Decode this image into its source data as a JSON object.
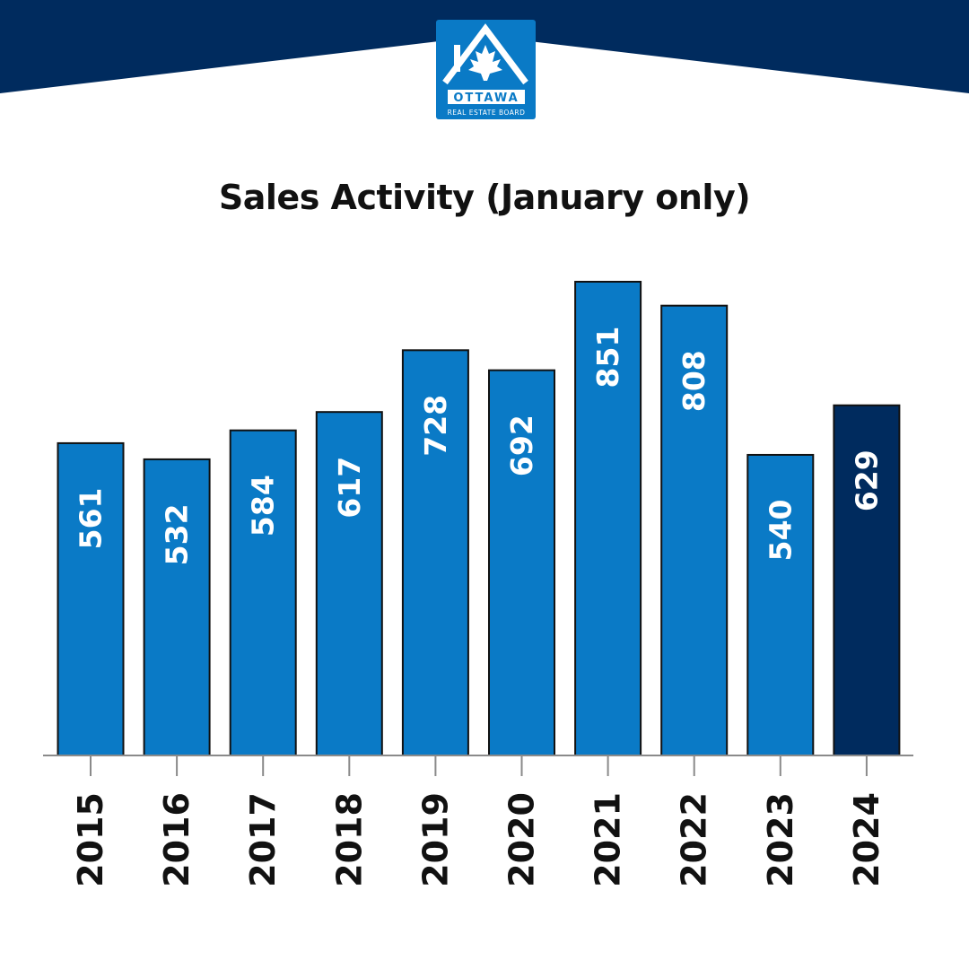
{
  "brand": {
    "logo_text_main": "OTTAWA",
    "logo_text_sub": "REAL ESTATE BOARD",
    "navy": "#002b5e",
    "blue": "#0a7ac6"
  },
  "chart_data": {
    "type": "bar",
    "title": "Sales Activity (January only)",
    "xlabel": "",
    "ylabel": "",
    "categories": [
      "2015",
      "2016",
      "2017",
      "2018",
      "2019",
      "2020",
      "2021",
      "2022",
      "2023",
      "2024"
    ],
    "values": [
      561,
      532,
      584,
      617,
      728,
      692,
      851,
      808,
      540,
      629
    ],
    "value_labels": [
      "561",
      "532",
      "584",
      "617",
      "728",
      "692",
      "851",
      "808",
      "540",
      "629"
    ],
    "highlight_index": 9,
    "ylim": [
      0,
      851
    ],
    "grid": false,
    "bar_color": "#0a7ac6",
    "highlight_color": "#002b5e"
  }
}
